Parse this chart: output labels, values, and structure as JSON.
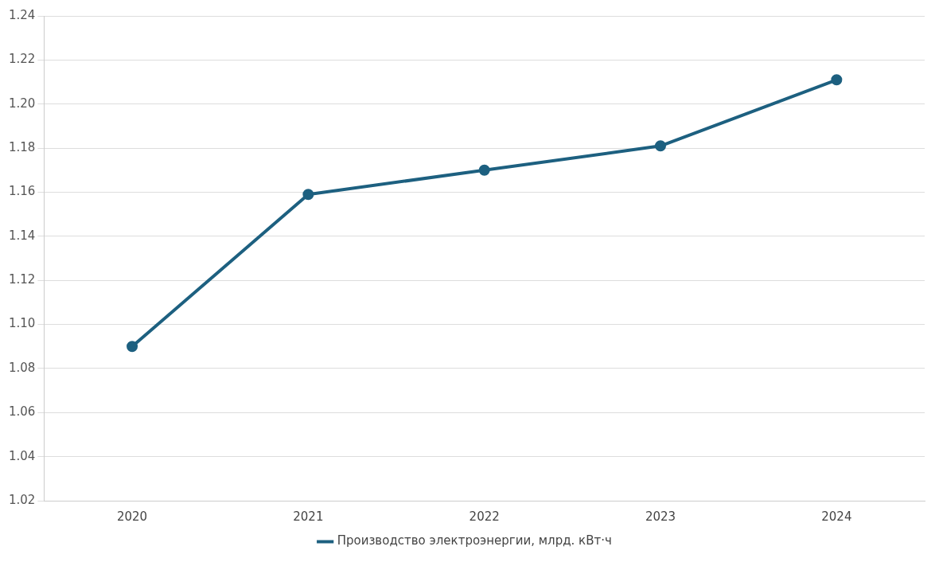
{
  "chart_data": {
    "type": "line",
    "categories": [
      "2020",
      "2021",
      "2022",
      "2023",
      "2024"
    ],
    "series": [
      {
        "name": "Производство электроэнергии, млрд. кВт·ч",
        "color": "#1d6080",
        "values": [
          1.09,
          1.159,
          1.17,
          1.181,
          1.211
        ]
      }
    ],
    "ylim": [
      1.02,
      1.24
    ],
    "yticks": [
      1.02,
      1.04,
      1.06,
      1.08,
      {
        "value": 1.1,
        "label": "1.10"
      },
      1.12,
      1.14,
      1.16,
      1.18,
      {
        "value": 1.2,
        "label": "1.20"
      },
      1.22,
      1.24
    ],
    "grid": "y",
    "legend": "bottom",
    "marker": "circle",
    "line_style": "solid"
  }
}
